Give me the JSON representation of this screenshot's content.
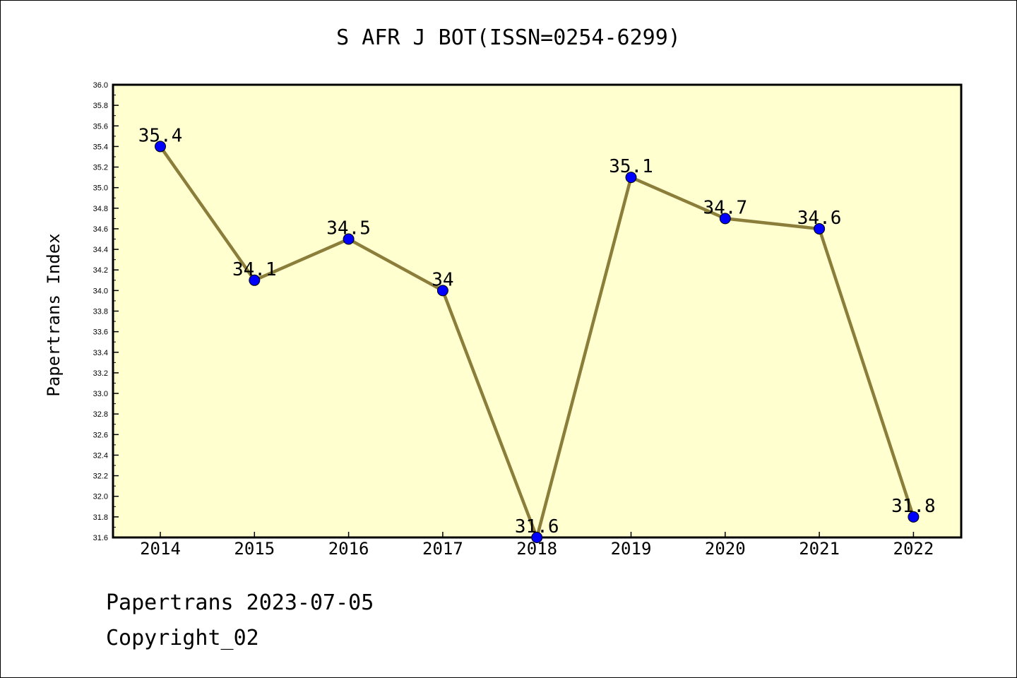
{
  "chart_data": {
    "type": "line",
    "title": "S AFR J BOT(ISSN=0254-6299)",
    "xlabel": "",
    "ylabel": "Papertrans Index",
    "categories": [
      "2014",
      "2015",
      "2016",
      "2017",
      "2018",
      "2019",
      "2020",
      "2021",
      "2022"
    ],
    "series": [
      {
        "values": [
          35.4,
          34.1,
          34.5,
          34.0,
          31.6,
          35.1,
          34.7,
          34.6,
          31.8
        ],
        "data_labels": [
          "35.4",
          "34.1",
          "34.5",
          "34",
          "31.6",
          "35.1",
          "34.7",
          "34.6",
          "31.8"
        ]
      }
    ],
    "ylim": [
      31.6,
      36.0
    ],
    "yticks": [
      "31.6",
      "31.8",
      "32.0",
      "32.2",
      "32.4",
      "32.6",
      "32.8",
      "33.0",
      "33.2",
      "33.4",
      "33.6",
      "33.8",
      "34.0",
      "34.2",
      "34.4",
      "34.6",
      "34.8",
      "35.0",
      "35.2",
      "35.4",
      "35.6",
      "35.8",
      "36.0"
    ],
    "grid": false,
    "colors": {
      "plot_background": "#ffffd0",
      "line": "#8b7d3a",
      "marker": "#0000ff"
    }
  },
  "footer": {
    "line1": "Papertrans 2023-07-05",
    "line2": "Copyright_02"
  }
}
